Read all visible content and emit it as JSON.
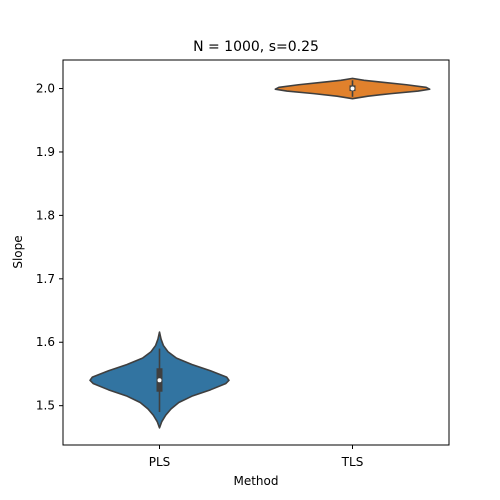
{
  "chart_data": {
    "type": "violin",
    "title": "N = 1000, s=0.25",
    "xlabel": "Method",
    "ylabel": "Slope",
    "categories": [
      "PLS",
      "TLS"
    ],
    "ylim": [
      1.438,
      2.045
    ],
    "yticks": [
      1.5,
      1.6,
      1.7,
      1.8,
      1.9,
      2.0
    ],
    "ytick_labels": [
      "1.5",
      "1.6",
      "1.7",
      "1.8",
      "1.9",
      "2.0"
    ],
    "grid": false,
    "series": [
      {
        "category": "PLS",
        "color": "#3274a1",
        "min": 1.465,
        "max": 1.616,
        "q1": 1.522,
        "median": 1.54,
        "q3": 1.559,
        "whisker_low": 1.49,
        "whisker_high": 1.59,
        "profile": [
          [
            1.465,
            0.0
          ],
          [
            1.475,
            0.03
          ],
          [
            1.485,
            0.08
          ],
          [
            1.495,
            0.15
          ],
          [
            1.505,
            0.25
          ],
          [
            1.515,
            0.42
          ],
          [
            1.525,
            0.66
          ],
          [
            1.535,
            0.86
          ],
          [
            1.54,
            0.9
          ],
          [
            1.545,
            0.87
          ],
          [
            1.555,
            0.66
          ],
          [
            1.565,
            0.42
          ],
          [
            1.575,
            0.22
          ],
          [
            1.585,
            0.11
          ],
          [
            1.595,
            0.05
          ],
          [
            1.605,
            0.02
          ],
          [
            1.616,
            0.0
          ]
        ]
      },
      {
        "category": "TLS",
        "color": "#e1812c",
        "min": 1.984,
        "max": 2.016,
        "q1": 1.996,
        "median": 2.0,
        "q3": 2.005,
        "whisker_low": 1.987,
        "whisker_high": 2.013,
        "profile": [
          [
            1.984,
            0.0
          ],
          [
            1.988,
            0.2
          ],
          [
            1.992,
            0.5
          ],
          [
            1.996,
            0.85
          ],
          [
            1.999,
            1.0
          ],
          [
            2.002,
            0.95
          ],
          [
            2.006,
            0.7
          ],
          [
            2.01,
            0.38
          ],
          [
            2.013,
            0.15
          ],
          [
            2.016,
            0.0
          ]
        ]
      }
    ]
  }
}
